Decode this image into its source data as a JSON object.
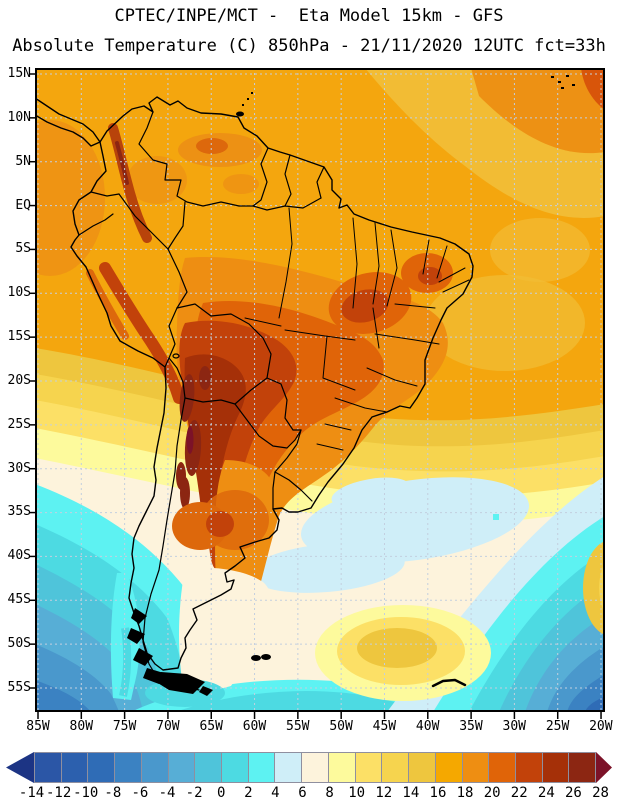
{
  "header": {
    "title_line1": "CPTEC/INPE/MCT -  Eta Model 15km - GFS",
    "title_line2": "Absolute Temperature (C) 850hPa - 21/11/2020 12UTC fct=33h"
  },
  "map": {
    "region": "South America",
    "lat_labels": [
      "15N",
      "10N",
      "5N",
      "EQ",
      "5S",
      "10S",
      "15S",
      "20S",
      "25S",
      "30S",
      "35S",
      "40S",
      "45S",
      "50S",
      "55S"
    ],
    "lon_labels": [
      "85W",
      "80W",
      "75W",
      "70W",
      "65W",
      "60W",
      "55W",
      "50W",
      "45W",
      "40W",
      "35W",
      "30W",
      "25W",
      "20W"
    ],
    "gridline_color": "#c3cfdf",
    "border_color": "#000000"
  },
  "colorbar": {
    "tick_labels": [
      "-14",
      "-12",
      "-10",
      "-8",
      "-6",
      "-4",
      "-2",
      "0",
      "2",
      "4",
      "6",
      "8",
      "10",
      "12",
      "14",
      "16",
      "18",
      "20",
      "22",
      "24",
      "26",
      "28"
    ],
    "segment_colors": [
      "#2B56A6",
      "#2C60AE",
      "#2F6CB6",
      "#3B82C2",
      "#4A98CC",
      "#57AED6",
      "#4FC4DA",
      "#4DDAE2",
      "#5DF2F2",
      "#CFEEF8",
      "#FDF3DC",
      "#FDFA9C",
      "#FCE066",
      "#F6D44E",
      "#EEC63E",
      "#F5A800",
      "#EE8E12",
      "#E06408",
      "#C2420A",
      "#A53008",
      "#8C2612"
    ],
    "arrow_left_color": "#1C3484",
    "arrow_right_color": "#7C1228",
    "units": "C"
  },
  "chart_data": {
    "type": "heatmap",
    "title": "Absolute Temperature (C) 850hPa",
    "model": "Eta Model 15km - GFS",
    "valid": "21/11/2020 12UTC fct=33h",
    "units": "C",
    "scale": {
      "min": -14,
      "max": 28,
      "step": 2
    },
    "lat_range": [
      "15N",
      "55S"
    ],
    "lon_range": [
      "85W",
      "20W"
    ],
    "approx_field_readings": [
      {
        "region": "Tropical Atlantic and Amazon basin",
        "value_c": "16 to 20"
      },
      {
        "region": "Central Brazil, Bolivia, Paraguay, N Argentina",
        "value_c": "20 to 26"
      },
      {
        "region": "Andes of Bolivia / N Chile / NW Argentina",
        "value_c": "26 to 28"
      },
      {
        "region": "Central Argentina warm tongue",
        "value_c": "18 to 22"
      },
      {
        "region": "Uruguay and S Brazil coast",
        "value_c": "10 to 16"
      },
      {
        "region": "Patagonia",
        "value_c": "6 to 10"
      },
      {
        "region": "SE Pacific southwest corner",
        "value_c": "-8 to 4"
      },
      {
        "region": "S Atlantic southeast corner",
        "value_c": "-10 to 6"
      },
      {
        "region": "Mid-latitude S Atlantic",
        "value_c": "4 to 8"
      }
    ]
  }
}
